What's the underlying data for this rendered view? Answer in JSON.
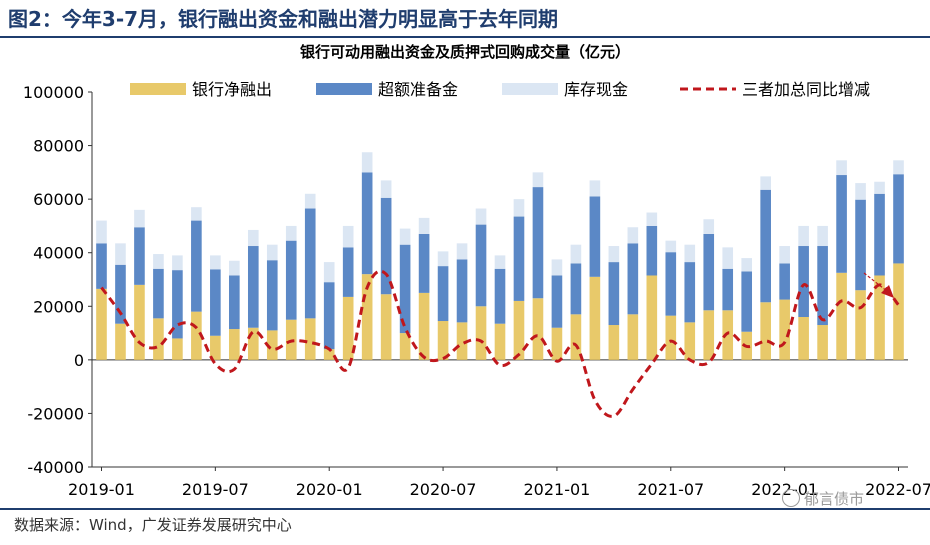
{
  "figure_title": "图2：今年3-7月，银行融出资金和融出潜力明显高于去年同期",
  "source": "数据来源：Wind，广发证券发展研究中心",
  "watermark": "郁言债市",
  "chart_data": {
    "type": "bar",
    "stacked": true,
    "title": "银行可动用融出资金及质押式回购成交量（亿元）",
    "xlabel": "",
    "ylabel": "",
    "ylim": [
      -40000,
      100000
    ],
    "yticks": [
      -40000,
      -20000,
      0,
      20000,
      40000,
      60000,
      80000,
      100000
    ],
    "xtick_labels": [
      "2019-01",
      "2019-07",
      "2020-01",
      "2020-07",
      "2021-01",
      "2021-07",
      "2022-01",
      "2022-07"
    ],
    "grid": false,
    "legend_position": "top",
    "categories": [
      "2019-01",
      "2019-02",
      "2019-03",
      "2019-04",
      "2019-05",
      "2019-06",
      "2019-07",
      "2019-08",
      "2019-09",
      "2019-10",
      "2019-11",
      "2019-12",
      "2020-01",
      "2020-02",
      "2020-03",
      "2020-04",
      "2020-05",
      "2020-06",
      "2020-07",
      "2020-08",
      "2020-09",
      "2020-10",
      "2020-11",
      "2020-12",
      "2021-01",
      "2021-02",
      "2021-03",
      "2021-04",
      "2021-05",
      "2021-06",
      "2021-07",
      "2021-08",
      "2021-09",
      "2021-10",
      "2021-11",
      "2021-12",
      "2022-01",
      "2022-02",
      "2022-03",
      "2022-04",
      "2022-05",
      "2022-06",
      "2022-07"
    ],
    "series": [
      {
        "name": "银行净融出",
        "kind": "bar",
        "color": "#e8c96a",
        "values": [
          26500,
          13500,
          28000,
          15500,
          8000,
          18000,
          9000,
          11500,
          12000,
          11000,
          15000,
          15500,
          4000,
          23500,
          32000,
          24500,
          10000,
          25000,
          14500,
          14000,
          20000,
          13500,
          22000,
          23000,
          12000,
          17000,
          31000,
          13000,
          17000,
          31500,
          16500,
          14000,
          18500,
          18500,
          10500,
          21500,
          22500,
          16000,
          13000,
          32500,
          26000,
          31500,
          36000
        ]
      },
      {
        "name": "超额准备金",
        "kind": "bar",
        "color": "#5b88c6",
        "values": [
          17000,
          22000,
          21500,
          18500,
          25500,
          34000,
          24800,
          20000,
          30500,
          26200,
          29500,
          41000,
          25000,
          18500,
          38000,
          36000,
          33000,
          22000,
          20500,
          23500,
          30500,
          20500,
          31500,
          41500,
          19500,
          19000,
          30000,
          23500,
          26500,
          18500,
          23700,
          22500,
          28500,
          15500,
          22500,
          42000,
          13500,
          26500,
          29500,
          36500,
          33800,
          30500,
          33300
        ]
      },
      {
        "name": "库存现金",
        "kind": "bar",
        "color": "#dbe6f3",
        "values": [
          8500,
          8000,
          6500,
          5500,
          5500,
          5000,
          5200,
          5500,
          6000,
          5800,
          5500,
          5500,
          7500,
          8000,
          7500,
          6500,
          6000,
          6000,
          5500,
          6000,
          6000,
          5000,
          6500,
          5500,
          6000,
          7000,
          6000,
          6000,
          6000,
          5000,
          4300,
          6500,
          5500,
          8000,
          5000,
          5000,
          6500,
          7500,
          7500,
          5500,
          6200,
          4500,
          5200
        ]
      },
      {
        "name": "三者加总同比增减",
        "kind": "line",
        "color": "#c0171c",
        "dash": true,
        "values": [
          27000,
          17500,
          6500,
          5000,
          13000,
          12000,
          -1500,
          -3500,
          10500,
          4000,
          7000,
          6500,
          4000,
          -3000,
          27000,
          32000,
          12000,
          1000,
          500,
          6000,
          7000,
          -2000,
          2000,
          9000,
          -500,
          5500,
          -15000,
          -21000,
          -11000,
          -1500,
          7000,
          0,
          -1000,
          10000,
          5000,
          7000,
          6500,
          28000,
          15000,
          22000,
          19500,
          28000,
          20500
        ]
      }
    ]
  }
}
